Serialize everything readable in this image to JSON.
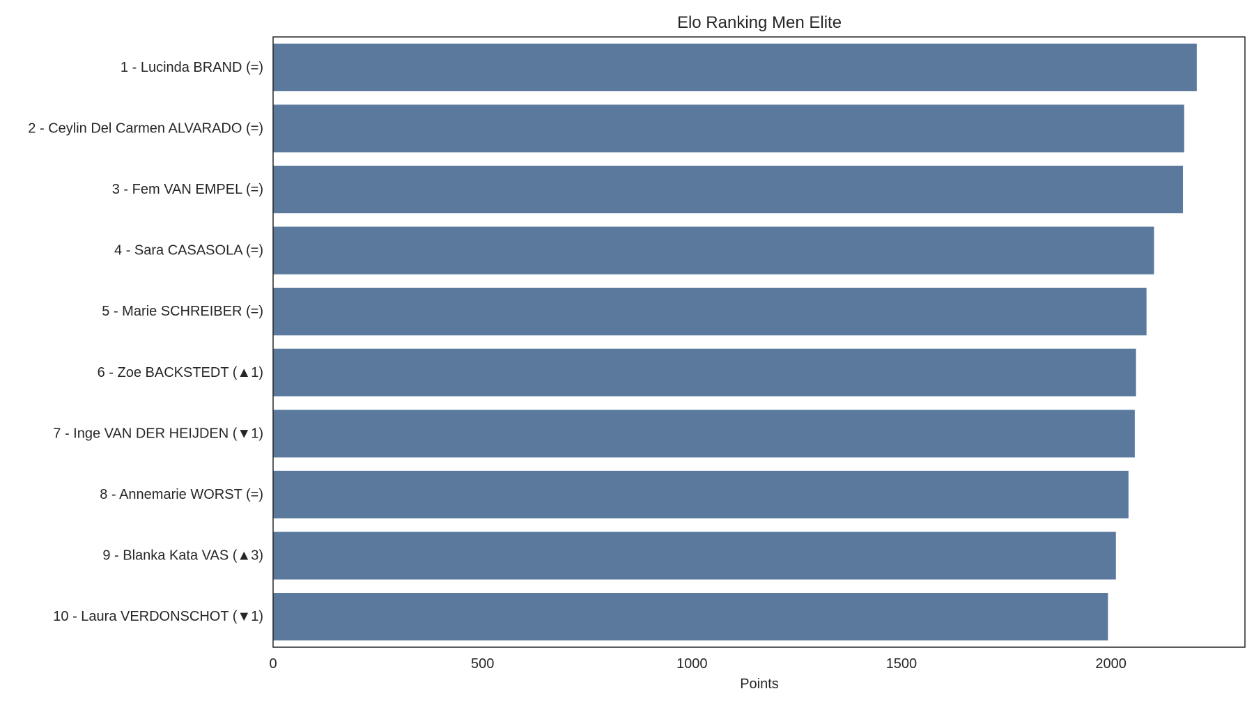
{
  "chart_data": {
    "type": "bar",
    "orientation": "horizontal",
    "title": "Elo Ranking Men Elite",
    "xlabel": "Points",
    "ylabel": "",
    "xlim": [
      0,
      2320
    ],
    "xticks": [
      0,
      500,
      1000,
      1500,
      2000
    ],
    "xtick_labels": [
      "0",
      "500",
      "1000",
      "1500",
      "2000"
    ],
    "grid": false,
    "bar_color": "#5a799c",
    "categories": [
      "1 - Lucinda BRAND (=)",
      "2 - Ceylin Del Carmen ALVARADO (=)",
      "3 - Fem VAN EMPEL (=)",
      "4 - Sara CASASOLA (=)",
      "5 - Marie SCHREIBER (=)",
      "6 - Zoe BACKSTEDT (▲1)",
      "7 - Inge VAN DER HEIJDEN (▼1)",
      "8 - Annemarie WORST (=)",
      "9 - Blanka Kata VAS (▲3)",
      "10 - Laura VERDONSCHOT (▼1)"
    ],
    "values": [
      2205,
      2175,
      2172,
      2103,
      2085,
      2060,
      2057,
      2042,
      2012,
      1993
    ]
  }
}
